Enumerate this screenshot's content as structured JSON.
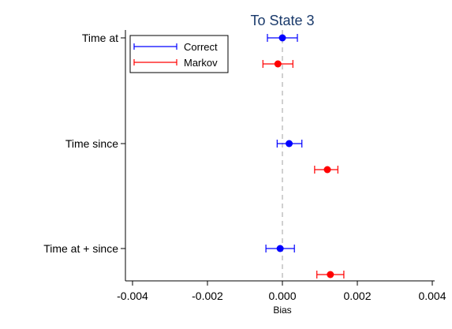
{
  "chart_data": {
    "type": "scatter",
    "title": "To State 3",
    "xlabel": "Bias",
    "ylabel": "",
    "xlim": [
      -0.004,
      0.004
    ],
    "xticks": [
      -0.004,
      -0.002,
      0.0,
      0.002,
      0.004
    ],
    "xtick_labels": [
      "-0.004",
      "-0.002",
      "0.000",
      "0.002",
      "0.004"
    ],
    "categories": [
      "Time at",
      "Time since",
      "Time at + since"
    ],
    "reference_line_x": 0.0,
    "legend_position": "top-left",
    "grid": false,
    "series": [
      {
        "name": "Correct",
        "color": "#0000ff",
        "points": [
          {
            "estimate": 0.0,
            "ci_low": -0.0004,
            "ci_high": 0.0004
          },
          {
            "estimate": 0.00018,
            "ci_low": -0.00014,
            "ci_high": 0.00052
          },
          {
            "estimate": -6e-05,
            "ci_low": -0.00044,
            "ci_high": 0.00032
          }
        ]
      },
      {
        "name": "Markov",
        "color": "#ff0000",
        "points": [
          {
            "estimate": -0.00012,
            "ci_low": -0.00052,
            "ci_high": 0.00028
          },
          {
            "estimate": 0.0012,
            "ci_low": 0.00086,
            "ci_high": 0.00148
          },
          {
            "estimate": 0.00128,
            "ci_low": 0.00092,
            "ci_high": 0.00164
          }
        ]
      }
    ]
  }
}
